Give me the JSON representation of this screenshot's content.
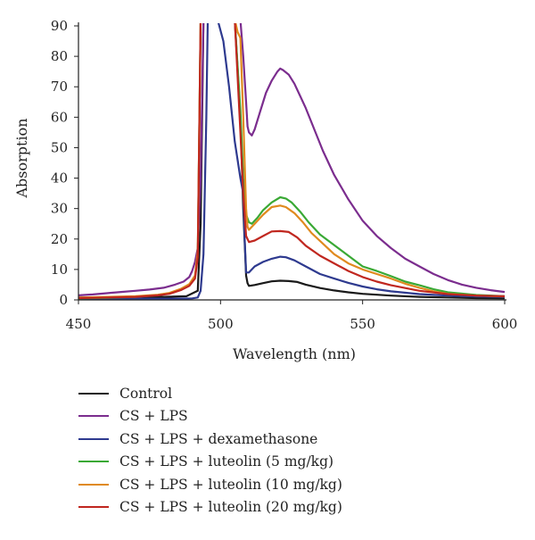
{
  "chart_data": {
    "type": "line",
    "xlabel": "Wavelength (nm)",
    "ylabel": "Absorption",
    "xlim": [
      450,
      600
    ],
    "ylim": [
      0,
      90
    ],
    "x_ticks": [
      450,
      500,
      550,
      600
    ],
    "y_ticks": [
      0,
      10,
      20,
      30,
      40,
      50,
      60,
      70,
      80,
      90
    ],
    "grid": false,
    "legend_position": "bottom",
    "series": [
      {
        "name": "Control",
        "color": "#1a1a1a",
        "points": [
          [
            450,
            0.8
          ],
          [
            460,
            0.8
          ],
          [
            470,
            0.9
          ],
          [
            480,
            1.0
          ],
          [
            488,
            1.2
          ],
          [
            492,
            3
          ],
          [
            493,
            25
          ],
          [
            494,
            92
          ],
          [
            505,
            92
          ],
          [
            507,
            60
          ],
          [
            508,
            30
          ],
          [
            509,
            8
          ],
          [
            509.5,
            5.5
          ],
          [
            510,
            4.6
          ],
          [
            512,
            4.9
          ],
          [
            515,
            5.5
          ],
          [
            518,
            6.1
          ],
          [
            521,
            6.3
          ],
          [
            524,
            6.2
          ],
          [
            527,
            5.9
          ],
          [
            530,
            5.0
          ],
          [
            535,
            3.9
          ],
          [
            540,
            3.1
          ],
          [
            545,
            2.5
          ],
          [
            550,
            2.0
          ],
          [
            560,
            1.4
          ],
          [
            570,
            1.0
          ],
          [
            580,
            0.8
          ],
          [
            590,
            0.6
          ],
          [
            600,
            0.5
          ]
        ]
      },
      {
        "name": "CS + LPS",
        "color": "#7b2d8e",
        "points": [
          [
            450,
            1.5
          ],
          [
            455,
            1.8
          ],
          [
            460,
            2.2
          ],
          [
            465,
            2.6
          ],
          [
            470,
            3.0
          ],
          [
            475,
            3.4
          ],
          [
            480,
            4.0
          ],
          [
            484,
            5.0
          ],
          [
            487,
            6.0
          ],
          [
            489,
            7.5
          ],
          [
            490,
            9.5
          ],
          [
            491,
            12.5
          ],
          [
            492,
            17
          ],
          [
            493,
            40
          ],
          [
            494,
            92
          ],
          [
            507,
            92
          ],
          [
            508,
            80
          ],
          [
            509,
            65
          ],
          [
            509.5,
            57
          ],
          [
            510,
            55
          ],
          [
            511,
            54
          ],
          [
            512,
            56
          ],
          [
            514,
            62
          ],
          [
            516,
            68
          ],
          [
            518,
            72
          ],
          [
            520,
            75
          ],
          [
            521,
            76
          ],
          [
            522,
            75.5
          ],
          [
            524,
            74
          ],
          [
            526,
            71
          ],
          [
            528,
            67
          ],
          [
            530,
            63
          ],
          [
            533,
            56
          ],
          [
            536,
            49
          ],
          [
            540,
            41
          ],
          [
            545,
            33
          ],
          [
            550,
            26
          ],
          [
            555,
            21
          ],
          [
            560,
            17
          ],
          [
            565,
            13.5
          ],
          [
            570,
            11
          ],
          [
            575,
            8.5
          ],
          [
            580,
            6.5
          ],
          [
            585,
            5.0
          ],
          [
            590,
            4.0
          ],
          [
            595,
            3.2
          ],
          [
            600,
            2.6
          ]
        ]
      },
      {
        "name": "CS + LPS + dexamethasone",
        "color": "#2e3a8f",
        "points": [
          [
            450,
            0.4
          ],
          [
            470,
            0.4
          ],
          [
            485,
            0.4
          ],
          [
            490,
            0.5
          ],
          [
            492,
            0.8
          ],
          [
            493,
            3
          ],
          [
            494,
            15
          ],
          [
            495,
            60
          ],
          [
            495.5,
            92
          ],
          [
            499,
            92
          ],
          [
            501,
            85
          ],
          [
            503,
            70
          ],
          [
            505,
            52
          ],
          [
            507,
            40
          ],
          [
            508,
            35
          ],
          [
            508.5,
            20
          ],
          [
            509,
            9
          ],
          [
            510,
            9
          ],
          [
            512,
            11
          ],
          [
            515,
            12.5
          ],
          [
            518,
            13.5
          ],
          [
            521,
            14.2
          ],
          [
            523,
            14.0
          ],
          [
            526,
            13
          ],
          [
            530,
            11
          ],
          [
            535,
            8.5
          ],
          [
            540,
            7
          ],
          [
            545,
            5.6
          ],
          [
            550,
            4.4
          ],
          [
            555,
            3.5
          ],
          [
            560,
            2.8
          ],
          [
            570,
            1.9
          ],
          [
            580,
            1.4
          ],
          [
            590,
            1.1
          ],
          [
            600,
            1.0
          ]
        ]
      },
      {
        "name": "CS + LPS + luteolin (5 mg/kg)",
        "color": "#3aa935",
        "points": [
          [
            450,
            0.5
          ],
          [
            460,
            0.7
          ],
          [
            470,
            1.0
          ],
          [
            478,
            1.6
          ],
          [
            482,
            2.2
          ],
          [
            486,
            3.5
          ],
          [
            489,
            5.0
          ],
          [
            491,
            7.5
          ],
          [
            492,
            15
          ],
          [
            493,
            92
          ],
          [
            505,
            92
          ],
          [
            507,
            62
          ],
          [
            508,
            40
          ],
          [
            509,
            28
          ],
          [
            510,
            25.5
          ],
          [
            511,
            25
          ],
          [
            513,
            27
          ],
          [
            515,
            29.5
          ],
          [
            518,
            32
          ],
          [
            521,
            33.7
          ],
          [
            523,
            33.3
          ],
          [
            525,
            32
          ],
          [
            528,
            29
          ],
          [
            531,
            25.5
          ],
          [
            535,
            21.5
          ],
          [
            540,
            18
          ],
          [
            545,
            14.5
          ],
          [
            550,
            11
          ],
          [
            555,
            9.5
          ],
          [
            560,
            7.8
          ],
          [
            565,
            6
          ],
          [
            570,
            4.8
          ],
          [
            575,
            3.5
          ],
          [
            580,
            2.5
          ],
          [
            590,
            1.6
          ],
          [
            600,
            1.2
          ]
        ]
      },
      {
        "name": "CS + LPS + luteolin (10 mg/kg)",
        "color": "#e08a1e",
        "points": [
          [
            450,
            0.8
          ],
          [
            460,
            1.0
          ],
          [
            470,
            1.2
          ],
          [
            478,
            1.7
          ],
          [
            482,
            2.3
          ],
          [
            486,
            3.6
          ],
          [
            489,
            5.2
          ],
          [
            491,
            8
          ],
          [
            492,
            16
          ],
          [
            493,
            92
          ],
          [
            505,
            92
          ],
          [
            506,
            88
          ],
          [
            507,
            86
          ],
          [
            508,
            60
          ],
          [
            509,
            30
          ],
          [
            509.5,
            24
          ],
          [
            510,
            23
          ],
          [
            512,
            25
          ],
          [
            515,
            28
          ],
          [
            518,
            30.5
          ],
          [
            521,
            31
          ],
          [
            523,
            30.5
          ],
          [
            526,
            28.5
          ],
          [
            529,
            25.5
          ],
          [
            532,
            22
          ],
          [
            536,
            18.5
          ],
          [
            540,
            15
          ],
          [
            545,
            12
          ],
          [
            550,
            10
          ],
          [
            555,
            8.5
          ],
          [
            560,
            7
          ],
          [
            565,
            5.3
          ],
          [
            570,
            4
          ],
          [
            575,
            2.8
          ],
          [
            580,
            2.0
          ],
          [
            590,
            1.4
          ],
          [
            600,
            1.1
          ]
        ]
      },
      {
        "name": "CS + LPS + luteolin (20 mg/kg)",
        "color": "#c0271f",
        "points": [
          [
            450,
            0.6
          ],
          [
            460,
            0.8
          ],
          [
            470,
            1.0
          ],
          [
            478,
            1.5
          ],
          [
            482,
            2.0
          ],
          [
            486,
            3.2
          ],
          [
            489,
            4.6
          ],
          [
            491,
            7
          ],
          [
            492,
            14
          ],
          [
            493,
            92
          ],
          [
            505,
            92
          ],
          [
            507,
            55
          ],
          [
            508,
            35
          ],
          [
            509,
            21
          ],
          [
            510,
            19
          ],
          [
            512,
            19.5
          ],
          [
            515,
            21
          ],
          [
            518,
            22.5
          ],
          [
            521,
            22.6
          ],
          [
            524,
            22.3
          ],
          [
            527,
            20.5
          ],
          [
            530,
            17.8
          ],
          [
            535,
            14.5
          ],
          [
            540,
            12
          ],
          [
            545,
            9.5
          ],
          [
            550,
            7.5
          ],
          [
            555,
            6
          ],
          [
            560,
            4.8
          ],
          [
            570,
            3.0
          ],
          [
            580,
            1.9
          ],
          [
            590,
            1.4
          ],
          [
            600,
            1.2
          ]
        ]
      }
    ]
  }
}
